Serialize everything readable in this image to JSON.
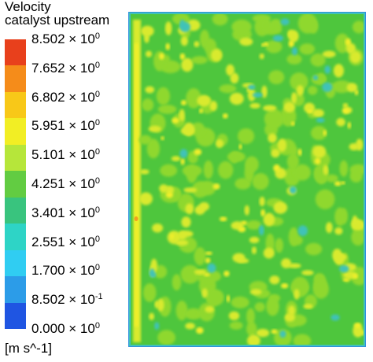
{
  "chart_data": {
    "type": "heatmap",
    "title": "Velocity",
    "subtitle": "catalyst upstream",
    "units": "[m s^-1]",
    "colorbar": {
      "ticks": [
        {
          "mantissa": "8.502",
          "exponent": "0"
        },
        {
          "mantissa": "7.652",
          "exponent": "0"
        },
        {
          "mantissa": "6.802",
          "exponent": "0"
        },
        {
          "mantissa": "5.951",
          "exponent": "0"
        },
        {
          "mantissa": "5.101",
          "exponent": "0"
        },
        {
          "mantissa": "4.251",
          "exponent": "0"
        },
        {
          "mantissa": "3.401",
          "exponent": "0"
        },
        {
          "mantissa": "2.551",
          "exponent": "0"
        },
        {
          "mantissa": "1.700",
          "exponent": "0"
        },
        {
          "mantissa": "8.502",
          "exponent": "-1"
        },
        {
          "mantissa": "0.000",
          "exponent": "0"
        }
      ],
      "colors_top_to_bottom": [
        "#e8401c",
        "#f58c1a",
        "#f8c818",
        "#f2ee24",
        "#b6e63a",
        "#62cc42",
        "#39c47e",
        "#2ed4c6",
        "#30cdf2",
        "#2c9ce8",
        "#1f55e2"
      ],
      "range": [
        0.0,
        8.502
      ]
    },
    "field": {
      "dominant_colors": {
        "frame": "#2f8fe0",
        "edge": "#3fc2b8",
        "background": "#4ec63d",
        "mid": "#8fd82f",
        "high": "#d9ea2e",
        "peak": "#f1ef2b",
        "max_spot": "#f3a11f"
      },
      "description_of_pattern": ""
    }
  }
}
